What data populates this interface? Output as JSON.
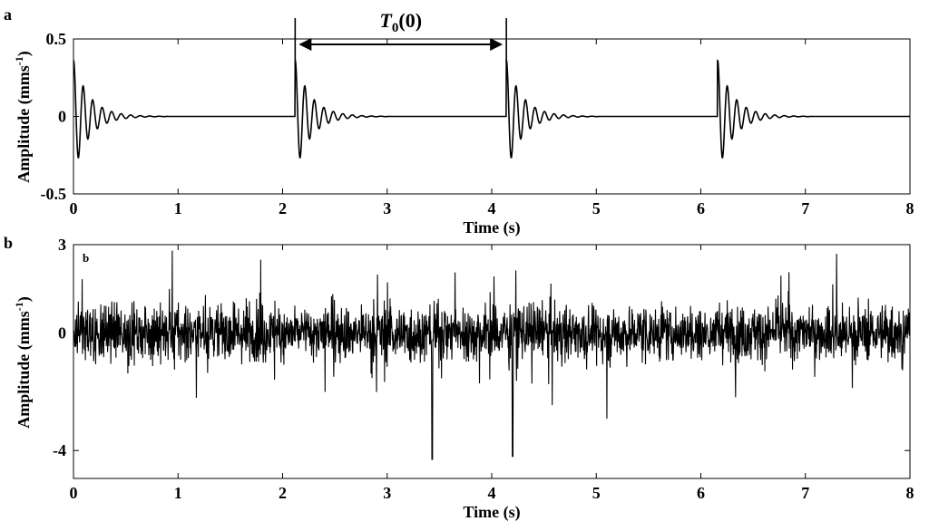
{
  "chart_data": [
    {
      "type": "line",
      "panel_label": "a",
      "xlabel": "Time (s)",
      "ylabel_main": "Amplitude (mms",
      "ylabel_sup": "-1",
      "ylabel_close": ")",
      "xlim": [
        0,
        8
      ],
      "ylim": [
        -0.5,
        0.5
      ],
      "x_ticks": [
        0,
        1,
        2,
        3,
        4,
        5,
        6,
        7,
        8
      ],
      "x_tick_labels": [
        "0",
        "1",
        "2",
        "3",
        "4",
        "5",
        "6",
        "7",
        "8"
      ],
      "y_ticks": [
        -0.5,
        0,
        0.5
      ],
      "y_tick_labels": [
        "-0.5",
        "0",
        "0.5"
      ],
      "grid": false,
      "signal": "periodic damped oscillation impulses",
      "impulse_times": [
        0.0,
        2.12,
        4.14,
        6.16
      ],
      "peak_amplitude": 0.36,
      "trough_amplitude": -0.28,
      "oscillation_frequency_hz": 11,
      "decay_time_s": 0.15,
      "annotation": {
        "label_main": "T",
        "label_sub": "0",
        "label_arg": "(0)",
        "from_x": 2.12,
        "to_x": 4.14
      }
    },
    {
      "type": "line",
      "panel_label": "b",
      "inner_label": "b",
      "xlabel": "Time (s)",
      "ylabel_main": "Amplitude (mms",
      "ylabel_sup": "-1",
      "ylabel_close": ")",
      "xlim": [
        0,
        8
      ],
      "ylim": [
        -5,
        3
      ],
      "x_ticks": [
        0,
        1,
        2,
        3,
        4,
        5,
        6,
        7,
        8
      ],
      "x_tick_labels": [
        "0",
        "1",
        "2",
        "3",
        "4",
        "5",
        "6",
        "7",
        "8"
      ],
      "y_ticks": [
        -4,
        0,
        3
      ],
      "y_tick_labels": [
        "-4",
        "0",
        "3"
      ],
      "grid": false,
      "signal": "dense noisy vibration signal",
      "approx_range": [
        -4.3,
        2.8
      ]
    }
  ]
}
